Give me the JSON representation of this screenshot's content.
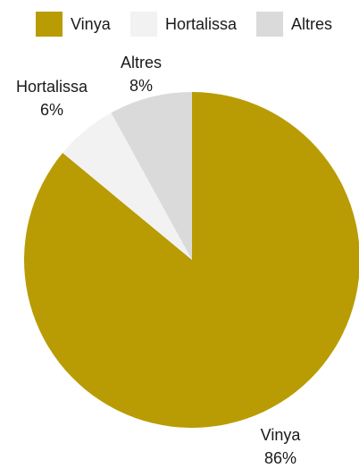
{
  "chart_data": {
    "type": "pie",
    "title": "",
    "legend_position": "top",
    "start_angle_deg": 0,
    "direction": "clockwise",
    "slices": [
      {
        "name": "Vinya",
        "value": 86,
        "label": "86%",
        "color": "#B99C04"
      },
      {
        "name": "Hortalissa",
        "value": 6,
        "label": "6%",
        "color": "#F2F2F2"
      },
      {
        "name": "Altres",
        "value": 8,
        "label": "8%",
        "color": "#DADADA"
      }
    ]
  }
}
